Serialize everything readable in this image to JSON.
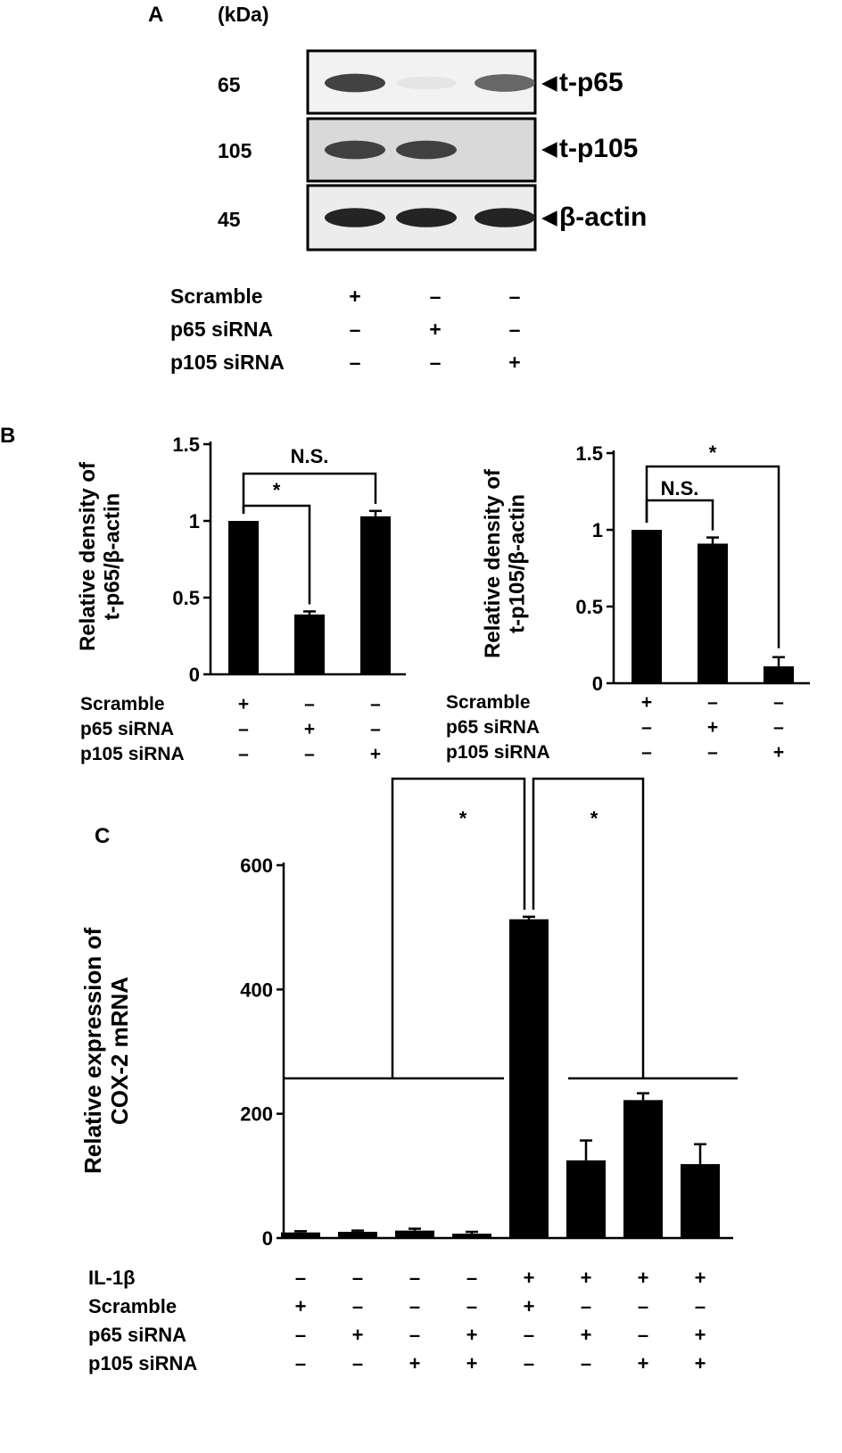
{
  "panel_a": {
    "letter": "A",
    "unit": "(kDa)",
    "rows": [
      {
        "mw": "65",
        "label": "t-p65",
        "bg": "#f2f2f2",
        "intensity": [
          0.85,
          0.08,
          0.72
        ]
      },
      {
        "mw": "105",
        "label": "t-p105",
        "bg": "#d9d9d9",
        "intensity": [
          0.85,
          0.85,
          0.0
        ]
      },
      {
        "mw": "45",
        "label": "β-actin",
        "bg": "#ececec",
        "intensity": [
          0.95,
          0.95,
          0.95
        ]
      }
    ],
    "conditions": [
      {
        "name": "Scramble",
        "signs": [
          "+",
          "–",
          "–"
        ]
      },
      {
        "name": "p65 siRNA",
        "signs": [
          "–",
          "+",
          "–"
        ]
      },
      {
        "name": "p105 siRNA",
        "signs": [
          "–",
          "–",
          "+"
        ]
      }
    ]
  },
  "chart_data": [
    {
      "panel": "B",
      "type": "bar",
      "letter": "B",
      "ylabel": [
        "Relative density of",
        "t-p65/β-actin"
      ],
      "ylim": [
        0,
        1.5
      ],
      "yticks": [
        0,
        0.5,
        1,
        1.5
      ],
      "ytick_labels": [
        "0",
        "0.5",
        "1",
        "1.5"
      ],
      "values": [
        1.0,
        0.39,
        1.03
      ],
      "errors": [
        0.0,
        0.02,
        0.035
      ],
      "conditions": [
        {
          "name": "Scramble",
          "signs": [
            "+",
            "–",
            "–"
          ]
        },
        {
          "name": "p65 siRNA",
          "signs": [
            "–",
            "+",
            "–"
          ]
        },
        {
          "name": "p105 siRNA",
          "signs": [
            "–",
            "–",
            "+"
          ]
        }
      ],
      "comparisons": [
        {
          "from": 0,
          "to": 2,
          "label": "N.S."
        },
        {
          "from": 0,
          "to": 1,
          "label": "*"
        }
      ]
    },
    {
      "panel": "B2",
      "type": "bar",
      "ylabel": [
        "Relative density of",
        "t-p105/β-actin"
      ],
      "ylim": [
        0,
        1.5
      ],
      "yticks": [
        0,
        0.5,
        1,
        1.5
      ],
      "ytick_labels": [
        "0",
        "0.5",
        "1",
        "1.5"
      ],
      "values": [
        1.0,
        0.91,
        0.11
      ],
      "errors": [
        0.0,
        0.04,
        0.06
      ],
      "conditions": [
        {
          "name": "Scramble",
          "signs": [
            "+",
            "–",
            "–"
          ]
        },
        {
          "name": "p65 siRNA",
          "signs": [
            "–",
            "+",
            "–"
          ]
        },
        {
          "name": "p105 siRNA",
          "signs": [
            "–",
            "–",
            "+"
          ]
        }
      ],
      "comparisons": [
        {
          "from": 0,
          "to": 2,
          "label": "*"
        },
        {
          "from": 0,
          "to": 1,
          "label": "N.S."
        }
      ]
    },
    {
      "panel": "C",
      "type": "bar",
      "letter": "C",
      "ylabel": [
        "Relative expression of",
        "COX-2 mRNA"
      ],
      "ylim": [
        0,
        600
      ],
      "yticks": [
        0,
        200,
        400,
        600
      ],
      "ytick_labels": [
        "0",
        "200",
        "400",
        "600"
      ],
      "values": [
        9,
        10,
        12,
        7,
        513,
        125,
        222,
        119
      ],
      "errors": [
        2,
        2,
        3,
        3,
        4,
        32,
        11,
        32
      ],
      "conditions": [
        {
          "name": "IL-1β",
          "signs": [
            "–",
            "–",
            "–",
            "–",
            "+",
            "+",
            "+",
            "+"
          ]
        },
        {
          "name": "Scramble",
          "signs": [
            "+",
            "–",
            "–",
            "–",
            "+",
            "–",
            "–",
            "–"
          ]
        },
        {
          "name": "p65 siRNA",
          "signs": [
            "–",
            "+",
            "–",
            "+",
            "–",
            "+",
            "–",
            "+"
          ]
        },
        {
          "name": "p105 siRNA",
          "signs": [
            "–",
            "–",
            "+",
            "+",
            "–",
            "–",
            "+",
            "+"
          ]
        }
      ],
      "comparisons": [
        {
          "group": [
            0,
            3
          ],
          "to": 4,
          "label": "*"
        },
        {
          "group": [
            5,
            7
          ],
          "to": 4,
          "label": "*"
        }
      ]
    }
  ]
}
